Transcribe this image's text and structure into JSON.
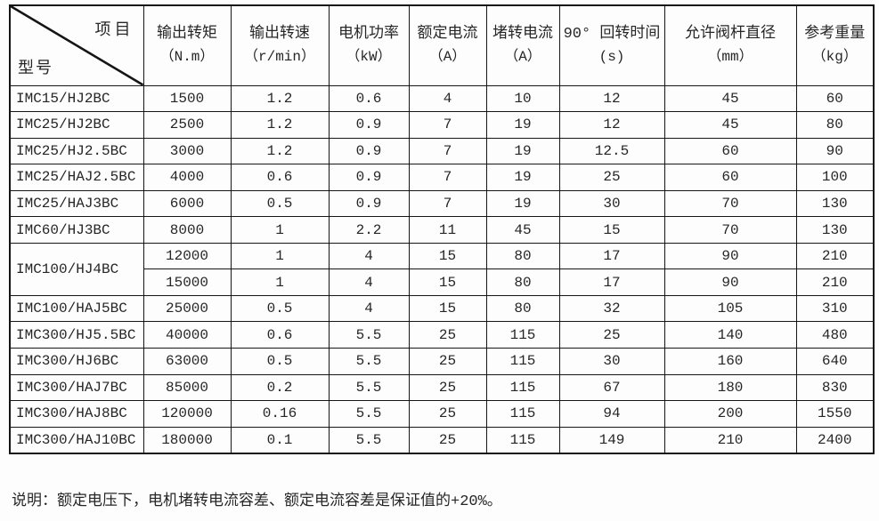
{
  "table": {
    "corner": {
      "top_right": "项目",
      "bottom_left": "型号"
    },
    "columns": [
      {
        "label": "输出转矩",
        "unit": "（N.m）"
      },
      {
        "label": "输出转速",
        "unit": "（r/min）"
      },
      {
        "label": "电机功率",
        "unit": "（kW）"
      },
      {
        "label": "额定电流",
        "unit": "（A）"
      },
      {
        "label": "堵转电流",
        "unit": "（A）"
      },
      {
        "label": "90° 回转时间",
        "unit": "(s)"
      },
      {
        "label": "允许阀杆直径",
        "unit": "（mm）"
      },
      {
        "label": "参考重量",
        "unit": "（kg）"
      }
    ],
    "rows": [
      {
        "model": "IMC15/HJ2BC",
        "values": [
          "1500",
          "1.2",
          "0.6",
          "4",
          "10",
          "12",
          "45",
          "60"
        ]
      },
      {
        "model": "IMC25/HJ2BC",
        "values": [
          "2500",
          "1.2",
          "0.9",
          "7",
          "19",
          "12",
          "45",
          "80"
        ]
      },
      {
        "model": "IMC25/HJ2.5BC",
        "values": [
          "3000",
          "1.2",
          "0.9",
          "7",
          "19",
          "12.5",
          "60",
          "90"
        ]
      },
      {
        "model": "IMC25/HAJ2.5BC",
        "values": [
          "4000",
          "0.6",
          "0.9",
          "7",
          "19",
          "25",
          "60",
          "100"
        ]
      },
      {
        "model": "IMC25/HAJ3BC",
        "values": [
          "6000",
          "0.5",
          "0.9",
          "7",
          "19",
          "30",
          "70",
          "130"
        ]
      },
      {
        "model": "IMC60/HJ3BC",
        "values": [
          "8000",
          "1",
          "2.2",
          "11",
          "45",
          "15",
          "70",
          "130"
        ]
      },
      {
        "model": "IMC100/HJ4BC",
        "model_rowspan": 2,
        "values": [
          "12000",
          "1",
          "4",
          "15",
          "80",
          "17",
          "90",
          "210"
        ]
      },
      {
        "model": null,
        "values": [
          "15000",
          "1",
          "4",
          "15",
          "80",
          "17",
          "90",
          "210"
        ]
      },
      {
        "model": "IMC100/HAJ5BC",
        "values": [
          "25000",
          "0.5",
          "4",
          "15",
          "80",
          "32",
          "105",
          "310"
        ]
      },
      {
        "model": "IMC300/HJ5.5BC",
        "values": [
          "40000",
          "0.6",
          "5.5",
          "25",
          "115",
          "25",
          "140",
          "480"
        ]
      },
      {
        "model": "IMC300/HJ6BC",
        "values": [
          "63000",
          "0.5",
          "5.5",
          "25",
          "115",
          "30",
          "160",
          "640"
        ]
      },
      {
        "model": "IMC300/HAJ7BC",
        "values": [
          "85000",
          "0.2",
          "5.5",
          "25",
          "115",
          "67",
          "180",
          "830"
        ]
      },
      {
        "model": "IMC300/HAJ8BC",
        "values": [
          "120000",
          "0.16",
          "5.5",
          "25",
          "115",
          "94",
          "200",
          "1550"
        ]
      },
      {
        "model": "IMC300/HAJ10BC",
        "values": [
          "180000",
          "0.1",
          "5.5",
          "25",
          "115",
          "149",
          "210",
          "2400"
        ]
      }
    ]
  },
  "note": "说明：额定电压下，电机堵转电流容差、额定电流容差是保证值的+20%。"
}
